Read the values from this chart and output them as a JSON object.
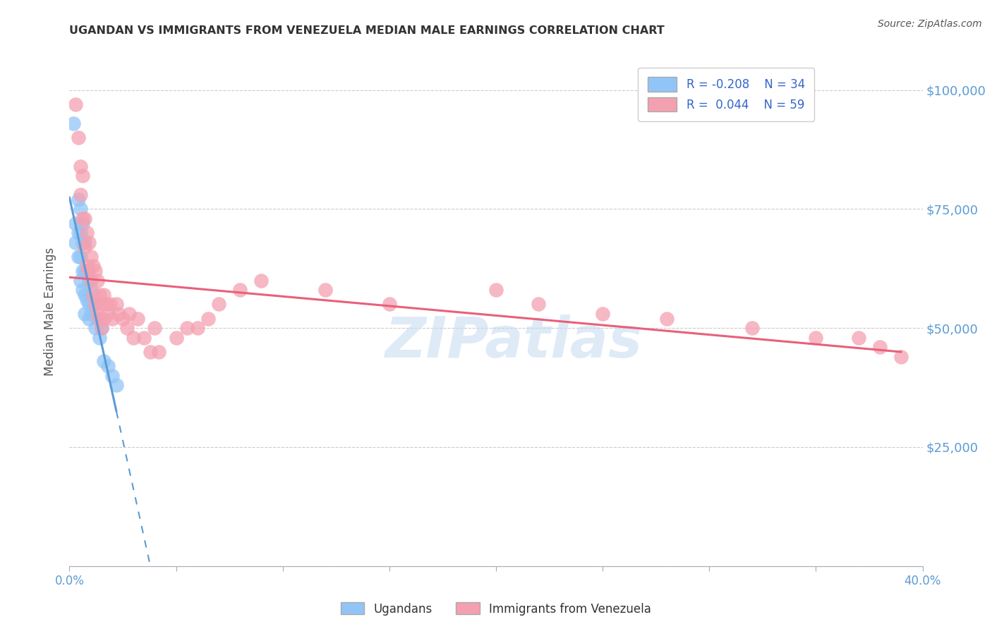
{
  "title": "UGANDAN VS IMMIGRANTS FROM VENEZUELA MEDIAN MALE EARNINGS CORRELATION CHART",
  "source": "Source: ZipAtlas.com",
  "ylabel": "Median Male Earnings",
  "yticks": [
    0,
    25000,
    50000,
    75000,
    100000
  ],
  "ytick_labels": [
    "",
    "$25,000",
    "$50,000",
    "$75,000",
    "$100,000"
  ],
  "xmin": 0.0,
  "xmax": 0.4,
  "ymin": 0,
  "ymax": 107000,
  "legend_R1": "R = -0.208",
  "legend_N1": "N = 34",
  "legend_R2": "R =  0.044",
  "legend_N2": "N = 59",
  "color_ugandan": "#92C5F7",
  "color_venezuela": "#F4A0B0",
  "color_ugandan_line": "#5B9BD5",
  "color_venezuela_line": "#E8607A",
  "color_axis": "#5B9BD5",
  "watermark": "ZIPatlas",
  "ugandan_x": [
    0.002,
    0.003,
    0.003,
    0.004,
    0.004,
    0.004,
    0.005,
    0.005,
    0.005,
    0.005,
    0.006,
    0.006,
    0.006,
    0.006,
    0.007,
    0.007,
    0.007,
    0.007,
    0.008,
    0.008,
    0.009,
    0.009,
    0.009,
    0.01,
    0.01,
    0.011,
    0.012,
    0.013,
    0.014,
    0.015,
    0.016,
    0.018,
    0.02,
    0.022
  ],
  "ugandan_y": [
    93000,
    72000,
    68000,
    77000,
    70000,
    65000,
    75000,
    70000,
    65000,
    60000,
    72000,
    68000,
    62000,
    58000,
    68000,
    62000,
    57000,
    53000,
    62000,
    56000,
    60000,
    55000,
    52000,
    58000,
    53000,
    55000,
    50000,
    52000,
    48000,
    50000,
    43000,
    42000,
    40000,
    38000
  ],
  "venezuela_x": [
    0.003,
    0.004,
    0.005,
    0.005,
    0.006,
    0.006,
    0.007,
    0.007,
    0.008,
    0.008,
    0.009,
    0.009,
    0.01,
    0.01,
    0.011,
    0.011,
    0.012,
    0.012,
    0.013,
    0.013,
    0.014,
    0.014,
    0.015,
    0.015,
    0.016,
    0.016,
    0.017,
    0.018,
    0.019,
    0.02,
    0.022,
    0.023,
    0.025,
    0.027,
    0.028,
    0.03,
    0.032,
    0.035,
    0.038,
    0.04,
    0.042,
    0.05,
    0.055,
    0.06,
    0.065,
    0.07,
    0.08,
    0.09,
    0.12,
    0.15,
    0.2,
    0.22,
    0.25,
    0.28,
    0.32,
    0.35,
    0.37,
    0.38,
    0.39
  ],
  "venezuela_y": [
    97000,
    90000,
    84000,
    78000,
    82000,
    73000,
    73000,
    67000,
    70000,
    63000,
    68000,
    62000,
    65000,
    60000,
    63000,
    57000,
    62000,
    55000,
    60000,
    53000,
    57000,
    52000,
    55000,
    50000,
    57000,
    52000,
    55000,
    53000,
    55000,
    52000,
    55000,
    53000,
    52000,
    50000,
    53000,
    48000,
    52000,
    48000,
    45000,
    50000,
    45000,
    48000,
    50000,
    50000,
    52000,
    55000,
    58000,
    60000,
    58000,
    55000,
    58000,
    55000,
    53000,
    52000,
    50000,
    48000,
    48000,
    46000,
    44000
  ]
}
